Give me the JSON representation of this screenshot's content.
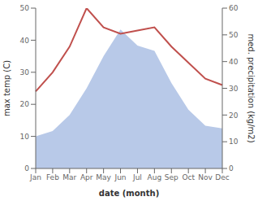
{
  "chart_data": {
    "type": "line",
    "categories": [
      "Jan",
      "Feb",
      "Mar",
      "Apr",
      "May",
      "Jun",
      "Jul",
      "Aug",
      "Sep",
      "Oct",
      "Nov",
      "Dec"
    ],
    "xlabel": "date (month)",
    "ylabel": "max temp (C)",
    "y2label": "med. precipitation (kg/m2)",
    "ylim": [
      0,
      50
    ],
    "yticks": [
      0,
      10,
      20,
      30,
      40,
      50
    ],
    "y2lim": [
      0,
      60
    ],
    "y2ticks": [
      0,
      10,
      20,
      30,
      40,
      50,
      60
    ],
    "grid": false,
    "series": [
      {
        "type": "area",
        "axis": "y2",
        "color": "#b8c9e8",
        "values": [
          12,
          14,
          20,
          30,
          42,
          52,
          46,
          44,
          32,
          22,
          16,
          15
        ]
      },
      {
        "type": "line",
        "axis": "y",
        "color": "#c0504d",
        "values": [
          24,
          30,
          38,
          50,
          44,
          42,
          43,
          44,
          38,
          33,
          28,
          26
        ]
      }
    ]
  }
}
